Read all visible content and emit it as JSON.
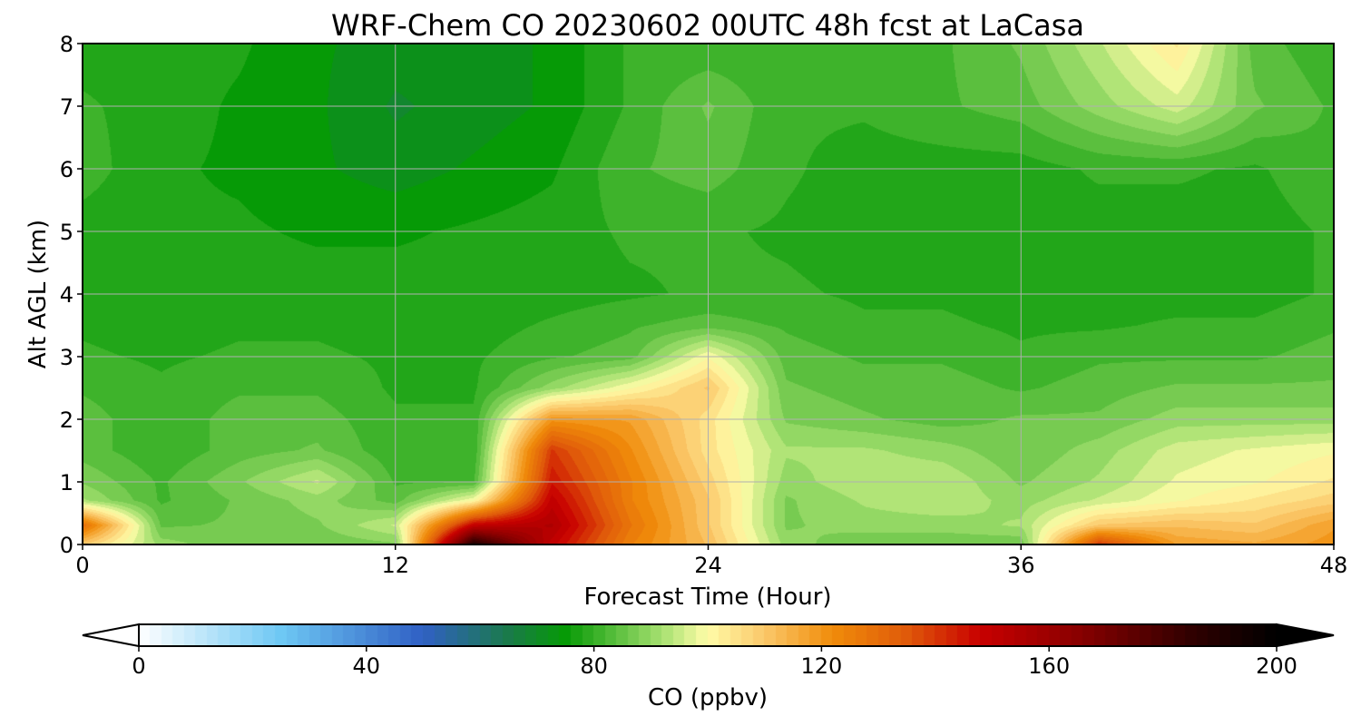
{
  "chart_data": {
    "type": "heatmap",
    "title": "WRF-Chem CO  20230602 00UTC 48h fcst at LaCasa",
    "xlabel": "Forecast Time (Hour)",
    "ylabel": "Alt AGL (km)",
    "xlim": [
      0,
      48
    ],
    "ylim": [
      0,
      8
    ],
    "xticks": [
      "0",
      "12",
      "24",
      "36",
      "48"
    ],
    "yticks": [
      "0",
      "1",
      "2",
      "3",
      "4",
      "5",
      "6",
      "7",
      "8"
    ],
    "grid": true,
    "x": [
      0,
      3,
      6,
      9,
      12,
      15,
      18,
      21,
      24,
      27,
      30,
      33,
      36,
      39,
      42,
      45,
      48
    ],
    "y": [
      0,
      0.3,
      0.7,
      1,
      1.5,
      2,
      2.5,
      3,
      3.5,
      4,
      5,
      6,
      7,
      8
    ],
    "z": [
      [
        110,
        90,
        86,
        86,
        88,
        190,
        150,
        125,
        112,
        90,
        86,
        86,
        86,
        140,
        118,
        116,
        120
      ],
      [
        130,
        85,
        86,
        88,
        95,
        150,
        155,
        128,
        110,
        88,
        90,
        90,
        92,
        110,
        112,
        110,
        118
      ],
      [
        92,
        82,
        86,
        90,
        84,
        100,
        150,
        125,
        110,
        88,
        92,
        94,
        90,
        95,
        100,
        104,
        108
      ],
      [
        88,
        82,
        88,
        95,
        82,
        82,
        145,
        125,
        108,
        90,
        94,
        94,
        88,
        92,
        98,
        100,
        104
      ],
      [
        84,
        80,
        84,
        86,
        80,
        80,
        140,
        122,
        105,
        92,
        92,
        90,
        86,
        90,
        96,
        98,
        100
      ],
      [
        84,
        80,
        84,
        84,
        80,
        80,
        120,
        118,
        105,
        88,
        86,
        84,
        86,
        86,
        90,
        90,
        90
      ],
      [
        82,
        80,
        82,
        82,
        79,
        79,
        90,
        100,
        110,
        86,
        84,
        84,
        82,
        84,
        86,
        86,
        86
      ],
      [
        80,
        79,
        80,
        80,
        79,
        79,
        82,
        84,
        100,
        84,
        82,
        82,
        80,
        82,
        82,
        82,
        84
      ],
      [
        79,
        78,
        79,
        79,
        78,
        78,
        80,
        82,
        84,
        82,
        80,
        80,
        79,
        79,
        80,
        80,
        82
      ],
      [
        78,
        78,
        78,
        78,
        78,
        78,
        78,
        79,
        80,
        80,
        79,
        79,
        78,
        78,
        78,
        78,
        80
      ],
      [
        78,
        77,
        77,
        76,
        76,
        77,
        78,
        80,
        80,
        79,
        78,
        78,
        78,
        78,
        78,
        78,
        80
      ],
      [
        81,
        77,
        76,
        74,
        72,
        74,
        76,
        82,
        84,
        80,
        78,
        78,
        78,
        80,
        80,
        79,
        82
      ],
      [
        80,
        78,
        76,
        74,
        70,
        72,
        74,
        80,
        86,
        80,
        80,
        82,
        84,
        90,
        96,
        86,
        82
      ],
      [
        78,
        78,
        77,
        74,
        72,
        72,
        74,
        80,
        80,
        80,
        80,
        82,
        86,
        94,
        104,
        84,
        80
      ]
    ],
    "colorbar": {
      "label": "CO  (ppbv)",
      "min": 0,
      "max": 200,
      "ticks": [
        "0",
        "40",
        "80",
        "120",
        "160",
        "200"
      ],
      "extend": "both",
      "stops": [
        {
          "v": 0,
          "c": "#ffffff"
        },
        {
          "v": 25,
          "c": "#6ec8f4"
        },
        {
          "v": 50,
          "c": "#3060c4"
        },
        {
          "v": 65,
          "c": "#1a7a4a"
        },
        {
          "v": 75,
          "c": "#069a06"
        },
        {
          "v": 92,
          "c": "#a6e070"
        },
        {
          "v": 100,
          "c": "#fffca8"
        },
        {
          "v": 110,
          "c": "#fbc86a"
        },
        {
          "v": 122,
          "c": "#f08c0a"
        },
        {
          "v": 135,
          "c": "#e05a0a"
        },
        {
          "v": 148,
          "c": "#c80000"
        },
        {
          "v": 165,
          "c": "#8a0000"
        },
        {
          "v": 185,
          "c": "#300000"
        },
        {
          "v": 200,
          "c": "#000000"
        }
      ]
    }
  }
}
